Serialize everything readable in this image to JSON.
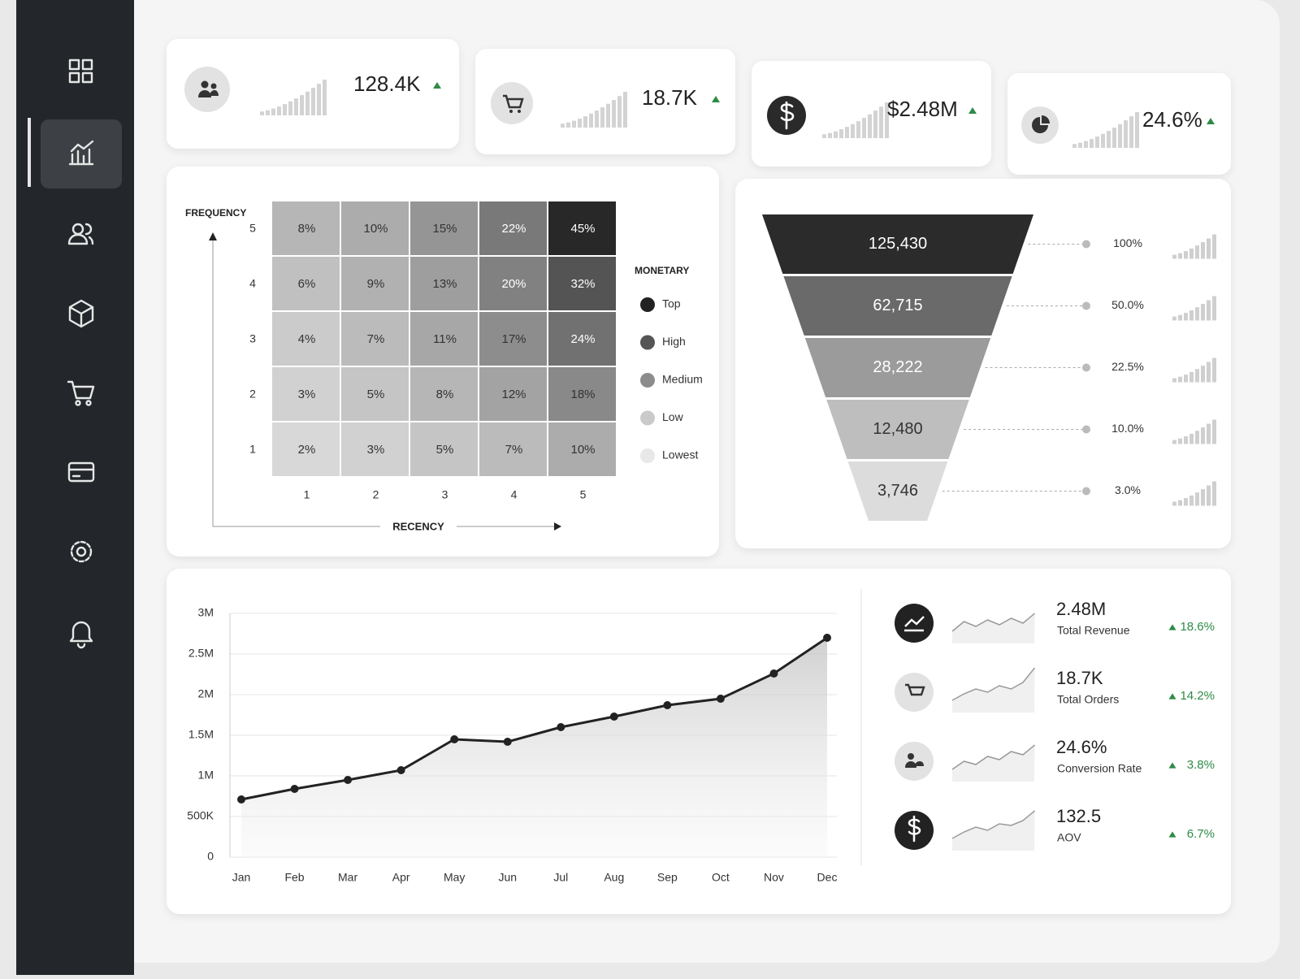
{
  "kpi_cards": [
    {
      "value": "128.4K"
    },
    {
      "value": "18.7K"
    },
    {
      "value": "$2.48M"
    },
    {
      "value": "24.6%"
    }
  ],
  "chart_data": [
    {
      "type": "heatmap",
      "y_label": "FREQUENCY",
      "x_label": "RECENCY",
      "x_categories": [
        "1",
        "2",
        "3",
        "4",
        "5"
      ],
      "y_categories": [
        "5",
        "4",
        "3",
        "2",
        "1"
      ],
      "values": [
        [
          8,
          10,
          15,
          22,
          45
        ],
        [
          6,
          9,
          13,
          20,
          32
        ],
        [
          4,
          7,
          11,
          17,
          24
        ],
        [
          3,
          5,
          8,
          12,
          18
        ],
        [
          2,
          3,
          5,
          7,
          10
        ]
      ],
      "value_labels": [
        [
          "8%",
          "10%",
          "15%",
          "22%",
          "45%"
        ],
        [
          "6%",
          "9%",
          "13%",
          "20%",
          "32%"
        ],
        [
          "4%",
          "7%",
          "11%",
          "17%",
          "24%"
        ],
        [
          "3%",
          "5%",
          "8%",
          "12%",
          "18%"
        ],
        [
          "2%",
          "3%",
          "5%",
          "7%",
          "10%"
        ]
      ],
      "legend": {
        "title": "MONETARY",
        "items": [
          {
            "name": "Top",
            "color": "#222222"
          },
          {
            "name": "High",
            "color": "#555555"
          },
          {
            "name": "Medium",
            "color": "#8c8c8c"
          },
          {
            "name": "Low",
            "color": "#cacaca"
          },
          {
            "name": "Lowest",
            "color": "#e8e8e8"
          }
        ]
      }
    },
    {
      "type": "funnel",
      "values": [
        125430,
        62715,
        28222,
        12480,
        3746
      ],
      "value_labels": [
        "125,430",
        "62,715",
        "28,222",
        "12,480",
        "3,746"
      ],
      "percent_values": [
        100,
        50.0,
        22.5,
        10.0,
        3.0
      ],
      "percent_labels": [
        "100%",
        "50.0%",
        "22.5%",
        "10.0%",
        "3.0%"
      ],
      "colors": [
        "#2b2b2b",
        "#6a6a6a",
        "#9b9b9b",
        "#bebebe",
        "#dcdcdc"
      ]
    },
    {
      "type": "line",
      "categories": [
        "Jan",
        "Feb",
        "Mar",
        "Apr",
        "May",
        "Jun",
        "Jul",
        "Aug",
        "Sep",
        "Oct",
        "Nov",
        "Dec"
      ],
      "values": [
        710000,
        840000,
        950000,
        1070000,
        1450000,
        1420000,
        1600000,
        1730000,
        1870000,
        1950000,
        2260000,
        2700000
      ],
      "color": "#222222",
      "ylim": [
        0,
        3000000
      ],
      "yticks": [
        0,
        {
          "value": 500000,
          "label": "500K"
        },
        {
          "value": 1000000,
          "label": "1M"
        },
        {
          "value": 1500000,
          "label": "1.5M"
        },
        {
          "value": 2000000,
          "label": "2M"
        },
        {
          "value": 2500000,
          "label": "2.5M"
        },
        {
          "value": 3000000,
          "label": "3M"
        }
      ],
      "grid": true
    }
  ],
  "summary_list": [
    {
      "value": "2.48M",
      "label": "Total Revenue",
      "change": "18.6%"
    },
    {
      "value": "18.7K",
      "label": "Total Orders",
      "change": "14.2%"
    },
    {
      "value": "24.6%",
      "label": "Conversion Rate",
      "change": "3.8%"
    },
    {
      "value": "132.5",
      "label": "AOV",
      "change": "6.7%"
    }
  ]
}
